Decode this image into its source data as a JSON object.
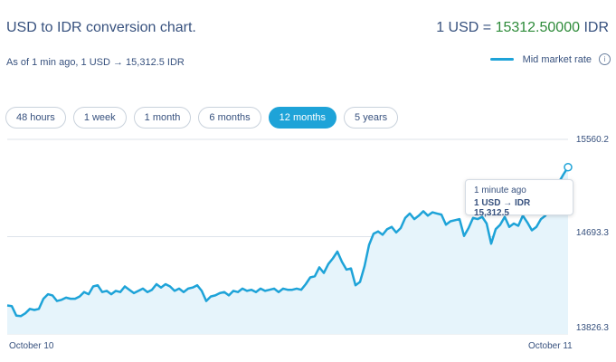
{
  "header": {
    "title": "USD to IDR conversion chart.",
    "rate_prefix": "1 USD = ",
    "rate_value": "15312.50000",
    "rate_suffix": " IDR",
    "as_of": "As of 1 min ago, 1 USD → 15,312.5 IDR"
  },
  "legend": {
    "label": "Mid market rate",
    "color": "#1ea3d8",
    "info_icon": "info-icon"
  },
  "tabs": [
    {
      "label": "48 hours",
      "active": false
    },
    {
      "label": "1 week",
      "active": false
    },
    {
      "label": "1 month",
      "active": false
    },
    {
      "label": "6 months",
      "active": false
    },
    {
      "label": "12 months",
      "active": true
    },
    {
      "label": "5 years",
      "active": false
    }
  ],
  "tooltip": {
    "time": "1 minute ago",
    "value": "1 USD → IDR 15,312.5"
  },
  "chart_data": {
    "type": "area",
    "series": [
      {
        "values": [
          14080,
          14075,
          13990,
          13985,
          14010,
          14050,
          14040,
          14050,
          14140,
          14180,
          14170,
          14120,
          14130,
          14150,
          14140,
          14140,
          14160,
          14200,
          14180,
          14250,
          14260,
          14200,
          14210,
          14180,
          14210,
          14200,
          14250,
          14220,
          14190,
          14210,
          14230,
          14200,
          14220,
          14270,
          14240,
          14270,
          14250,
          14210,
          14230,
          14200,
          14230,
          14240,
          14260,
          14210,
          14120,
          14160,
          14170,
          14190,
          14200,
          14170,
          14210,
          14200,
          14230,
          14210,
          14220,
          14200,
          14230,
          14210,
          14220,
          14230,
          14200,
          14230,
          14220,
          14220,
          14230,
          14220,
          14270,
          14330,
          14340,
          14420,
          14370,
          14450,
          14500,
          14560,
          14470,
          14400,
          14410,
          14260,
          14290,
          14430,
          14620,
          14720,
          14740,
          14710,
          14760,
          14780,
          14730,
          14770,
          14860,
          14900,
          14850,
          14880,
          14920,
          14880,
          14910,
          14900,
          14890,
          14800,
          14830,
          14840,
          14850,
          14700,
          14770,
          14860,
          14850,
          14870,
          14810,
          14630,
          14760,
          14800,
          14870,
          14780,
          14810,
          14790,
          14880,
          14820,
          14750,
          14780,
          14850,
          14880,
          15010,
          15100,
          15180,
          15250,
          15312.5
        ]
      }
    ],
    "x_labels": [
      "October 10",
      "October 11"
    ],
    "y_ticks": [
      "15560.2",
      "14693.3",
      "13826.3"
    ],
    "ylim": [
      13826.3,
      15560.2
    ],
    "grid": "horizontal",
    "line_color": "#1ea3d8",
    "fill_color": "#e6f4fb"
  }
}
